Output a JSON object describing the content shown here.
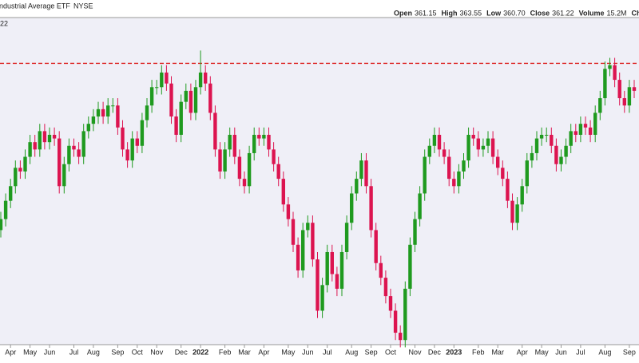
{
  "chart_data": {
    "type": "candlestick",
    "title": "ndustrial Average ETF",
    "exchange": "NYSE",
    "corner_label": "22",
    "stats": [
      {
        "label": "Open",
        "value": "361.15"
      },
      {
        "label": "High",
        "value": "363.55"
      },
      {
        "label": "Low",
        "value": "360.70"
      },
      {
        "label": "Close",
        "value": "361.22"
      },
      {
        "label": "Volume",
        "value": "15.2M"
      },
      {
        "label": "Ch",
        "value": null
      }
    ],
    "up_color": "#1f9a1f",
    "down_color": "#dc1450",
    "background": "#efeff7",
    "reference_line": {
      "value": 363.5,
      "color": "#dd2222"
    },
    "ylim": [
      285,
      376
    ],
    "categories": [
      null,
      null,
      "Apr",
      null,
      null,
      null,
      "May",
      null,
      null,
      null,
      "Jun",
      null,
      null,
      null,
      null,
      "Jul",
      null,
      null,
      null,
      "Aug",
      null,
      null,
      null,
      null,
      "Sep",
      null,
      null,
      null,
      "Oct",
      null,
      null,
      null,
      "Nov",
      null,
      null,
      null,
      null,
      "Dec",
      null,
      null,
      null,
      "2022",
      null,
      null,
      null,
      null,
      "Feb",
      null,
      null,
      null,
      "Mar",
      null,
      null,
      null,
      "Apr",
      null,
      null,
      null,
      null,
      "May",
      null,
      null,
      null,
      "Jun",
      null,
      null,
      null,
      "Jul",
      null,
      null,
      null,
      null,
      "Aug",
      null,
      null,
      null,
      "Sep",
      null,
      null,
      null,
      "Oct",
      null,
      null,
      null,
      null,
      "Nov",
      null,
      null,
      null,
      "Dec",
      null,
      null,
      null,
      "2023",
      null,
      null,
      null,
      null,
      "Feb",
      null,
      null,
      null,
      "Mar",
      null,
      null,
      null,
      null,
      "Apr",
      null,
      null,
      null,
      "May",
      null,
      null,
      null,
      "Jun",
      null,
      null,
      null,
      "Jul",
      null,
      null,
      null,
      null,
      "Aug",
      null,
      null,
      null,
      null,
      "Sep",
      null
    ],
    "open": [
      318,
      321,
      326,
      330,
      335,
      334,
      338,
      342,
      340,
      345,
      342,
      344,
      343,
      330,
      336,
      341,
      340,
      338,
      345,
      347,
      349,
      351,
      349,
      352,
      352,
      346,
      340,
      337,
      343,
      341,
      348,
      352,
      357,
      357,
      361,
      358,
      349,
      344,
      353,
      356,
      350,
      357,
      361,
      358,
      350,
      340,
      334,
      340,
      344,
      338,
      332,
      330,
      339,
      344,
      343,
      344,
      340,
      336,
      332,
      325,
      321,
      314,
      307,
      318,
      320,
      310,
      296,
      303,
      312,
      306,
      302,
      312,
      320,
      328,
      332,
      337,
      330,
      318,
      309,
      305,
      300,
      296,
      290,
      288,
      302,
      314,
      321,
      328,
      338,
      341,
      344,
      340,
      338,
      332,
      330,
      334,
      337,
      344,
      343,
      340,
      341,
      343,
      338,
      335,
      332,
      326,
      320,
      325,
      330,
      337,
      339,
      343,
      344,
      344,
      341,
      336,
      338,
      341,
      345,
      344,
      347,
      346,
      344,
      350,
      354,
      362,
      363,
      359,
      354,
      352,
      357
    ],
    "high": [
      323,
      328,
      332,
      337,
      337,
      340,
      344,
      344,
      347,
      347,
      346,
      346,
      345,
      338,
      343,
      343,
      342,
      347,
      349,
      351,
      353,
      353,
      354,
      354,
      354,
      348,
      342,
      345,
      345,
      350,
      354,
      359,
      359,
      363,
      363,
      360,
      351,
      355,
      358,
      358,
      359,
      367,
      363,
      360,
      352,
      342,
      342,
      346,
      346,
      340,
      334,
      341,
      346,
      346,
      346,
      346,
      342,
      338,
      334,
      327,
      323,
      316,
      320,
      322,
      322,
      312,
      305,
      314,
      314,
      308,
      314,
      322,
      330,
      334,
      339,
      339,
      332,
      320,
      311,
      307,
      302,
      298,
      292,
      304,
      316,
      323,
      330,
      340,
      343,
      346,
      346,
      342,
      340,
      334,
      336,
      339,
      346,
      346,
      345,
      343,
      345,
      345,
      340,
      337,
      334,
      328,
      327,
      332,
      339,
      341,
      345,
      346,
      346,
      346,
      343,
      340,
      343,
      347,
      347,
      349,
      349,
      348,
      352,
      356,
      364,
      365,
      365,
      361,
      356,
      359,
      359
    ],
    "low": [
      316,
      319,
      324,
      328,
      332,
      332,
      336,
      338,
      338,
      340,
      340,
      341,
      328,
      328,
      334,
      338,
      336,
      336,
      343,
      345,
      347,
      347,
      347,
      350,
      344,
      338,
      335,
      335,
      339,
      339,
      346,
      350,
      355,
      355,
      356,
      347,
      342,
      342,
      351,
      348,
      348,
      355,
      356,
      348,
      338,
      332,
      332,
      338,
      336,
      330,
      328,
      328,
      337,
      341,
      341,
      338,
      334,
      330,
      323,
      319,
      312,
      305,
      305,
      316,
      308,
      294,
      294,
      301,
      304,
      300,
      300,
      310,
      318,
      326,
      330,
      328,
      316,
      307,
      303,
      298,
      294,
      288,
      286,
      286,
      300,
      312,
      319,
      326,
      336,
      339,
      338,
      336,
      330,
      328,
      328,
      332,
      335,
      341,
      338,
      338,
      339,
      336,
      333,
      330,
      324,
      318,
      318,
      323,
      328,
      335,
      337,
      341,
      342,
      339,
      334,
      334,
      336,
      339,
      342,
      342,
      344,
      342,
      342,
      348,
      352,
      360,
      357,
      352,
      350,
      350,
      354
    ],
    "close": [
      321,
      326,
      330,
      335,
      334,
      338,
      342,
      340,
      345,
      342,
      344,
      343,
      330,
      336,
      341,
      340,
      338,
      345,
      347,
      349,
      351,
      349,
      352,
      352,
      346,
      340,
      337,
      343,
      341,
      348,
      352,
      357,
      357,
      361,
      358,
      349,
      344,
      353,
      356,
      350,
      357,
      361,
      358,
      350,
      340,
      334,
      340,
      344,
      338,
      332,
      330,
      339,
      344,
      343,
      344,
      340,
      336,
      332,
      325,
      321,
      314,
      307,
      318,
      320,
      310,
      296,
      303,
      312,
      306,
      302,
      312,
      320,
      328,
      332,
      337,
      330,
      318,
      309,
      305,
      300,
      296,
      290,
      288,
      302,
      314,
      321,
      328,
      338,
      341,
      344,
      340,
      338,
      332,
      330,
      334,
      337,
      344,
      343,
      340,
      341,
      343,
      338,
      335,
      332,
      326,
      320,
      325,
      330,
      337,
      339,
      343,
      344,
      344,
      341,
      336,
      338,
      341,
      345,
      344,
      347,
      346,
      344,
      350,
      354,
      362,
      363,
      359,
      354,
      352,
      357,
      356
    ]
  }
}
